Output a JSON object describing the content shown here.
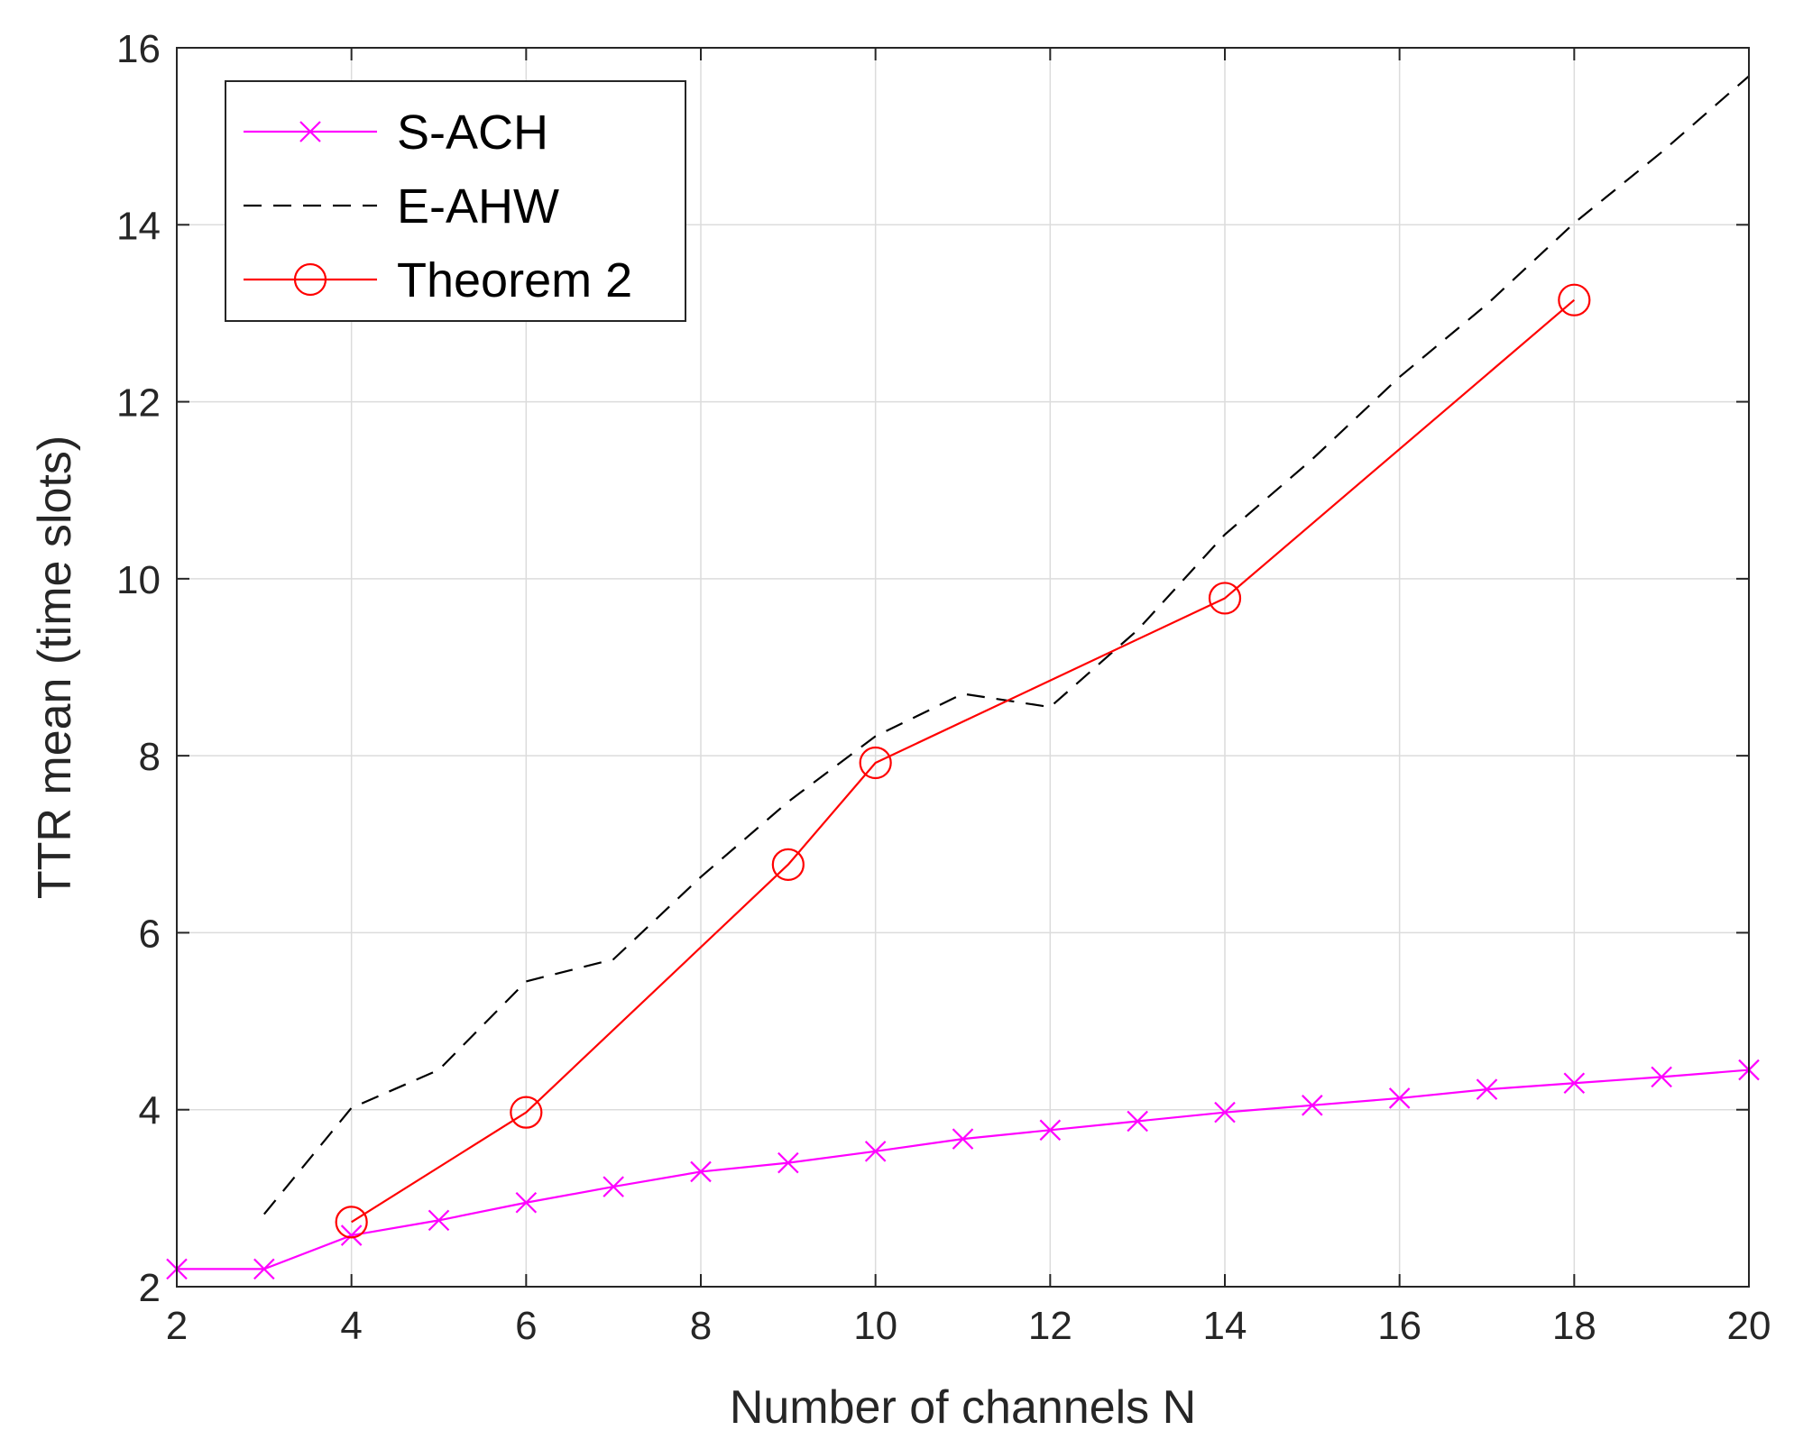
{
  "chart_data": {
    "type": "line",
    "title": "",
    "xlabel": "Number of channels N",
    "ylabel": "TTR mean (time slots)",
    "xlim": [
      2,
      20
    ],
    "ylim": [
      2,
      16
    ],
    "xticks": [
      2,
      4,
      6,
      8,
      10,
      12,
      14,
      16,
      18,
      20
    ],
    "yticks": [
      2,
      4,
      6,
      8,
      10,
      12,
      14,
      16
    ],
    "grid": true,
    "legend_position": "top-left",
    "series": [
      {
        "name": "S-ACH",
        "color": "#ff00ff",
        "line_style": "solid",
        "marker": "x",
        "x": [
          2,
          3,
          4,
          5,
          6,
          7,
          8,
          9,
          10,
          11,
          12,
          13,
          14,
          15,
          16,
          17,
          18,
          19,
          20
        ],
        "y": [
          2.2,
          2.2,
          2.58,
          2.75,
          2.95,
          3.13,
          3.3,
          3.4,
          3.53,
          3.67,
          3.77,
          3.87,
          3.97,
          4.05,
          4.13,
          4.23,
          4.3,
          4.37,
          4.45
        ]
      },
      {
        "name": "E-AHW",
        "color": "#000000",
        "line_style": "dashed",
        "marker": "none",
        "x": [
          3,
          4,
          5,
          6,
          7,
          8,
          9,
          10,
          11,
          12,
          13,
          14,
          15,
          16,
          17,
          18,
          19,
          20
        ],
        "y": [
          2.82,
          4.02,
          4.45,
          5.45,
          5.7,
          6.63,
          7.48,
          8.22,
          8.7,
          8.55,
          9.42,
          10.5,
          11.35,
          12.28,
          13.1,
          14.02,
          14.82,
          15.68
        ]
      },
      {
        "name": "Theorem 2",
        "color": "#ff0000",
        "line_style": "solid",
        "marker": "o",
        "x": [
          4,
          6,
          9,
          10,
          14,
          18
        ],
        "y": [
          2.73,
          3.97,
          6.77,
          7.92,
          9.78,
          13.15
        ]
      }
    ]
  }
}
